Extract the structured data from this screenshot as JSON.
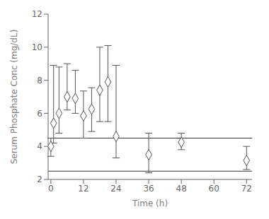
{
  "chart_data": {
    "type": "scatter",
    "x": [
      0,
      1,
      3,
      6,
      9,
      12,
      15,
      18,
      21,
      24,
      36,
      48,
      72
    ],
    "values": [
      4.0,
      5.4,
      6.0,
      7.0,
      6.9,
      5.85,
      6.25,
      7.4,
      7.9,
      4.6,
      3.5,
      4.25,
      3.15
    ],
    "error_upper": [
      0.5,
      3.5,
      2.8,
      2.0,
      1.7,
      1.5,
      1.3,
      2.6,
      2.2,
      4.3,
      1.3,
      0.55,
      0.85
    ],
    "error_lower": [
      0.6,
      1.2,
      1.2,
      0.8,
      0.9,
      1.35,
      1.35,
      1.9,
      2.4,
      1.3,
      1.1,
      0.45,
      0.55
    ],
    "color": "#555555",
    "marker": "diamond",
    "reference_lines": [
      {
        "y": 4.5,
        "color": "#333333"
      },
      {
        "y": 2.5,
        "color": "#333333"
      }
    ],
    "xlim": [
      -1,
      74
    ],
    "ylim": [
      2.0,
      12.0
    ],
    "xticks": [
      0,
      12,
      24,
      36,
      48,
      60,
      72
    ],
    "yticks": [
      2,
      4,
      6,
      8,
      10,
      12
    ],
    "xlabel": "Time (h)",
    "ylabel": "Serum Phosphate Conc (mg/dL)",
    "grid": false
  }
}
